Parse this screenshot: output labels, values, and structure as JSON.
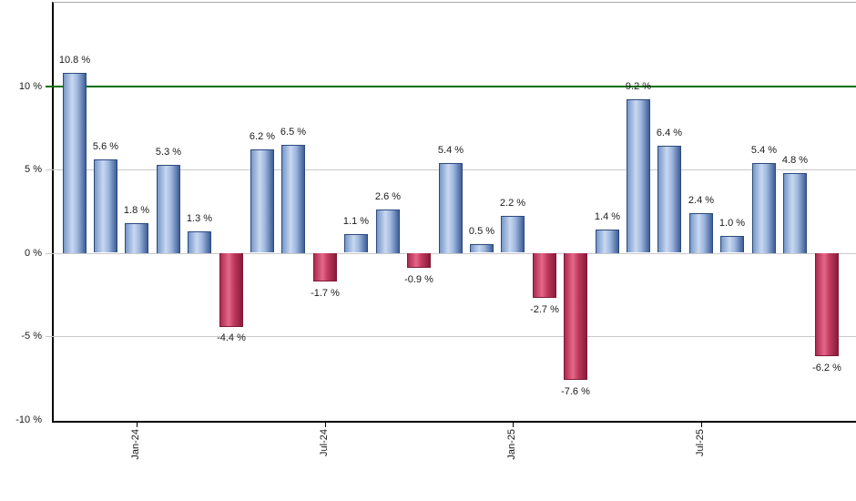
{
  "page": {
    "background": "#ffffff"
  },
  "chart_data": {
    "type": "bar",
    "title": "",
    "xlabel": "",
    "ylabel": "",
    "legend_position": "none",
    "grid": "horizontal",
    "ylim": [
      -10.3,
      14.8
    ],
    "values": [
      10.8,
      5.6,
      1.8,
      5.3,
      1.3,
      -4.4,
      6.2,
      6.5,
      -1.7,
      1.1,
      2.6,
      -0.9,
      5.4,
      0.5,
      2.2,
      -2.7,
      -7.6,
      1.4,
      9.2,
      6.4,
      2.4,
      1.0,
      5.4,
      4.8,
      -6.2
    ],
    "value_labels": [
      "10.8 %",
      "5.6 %",
      "1.8 %",
      "5.3 %",
      "1.3 %",
      "-4.4 %",
      "6.2 %",
      "6.5 %",
      "-1.7 %",
      "1.1 %",
      "2.6 %",
      "-0.9 %",
      "5.4 %",
      "0.5 %",
      "2.2 %",
      "-2.7 %",
      "-7.6 %",
      "1.4 %",
      "9.2 %",
      "6.4 %",
      "2.4 %",
      "1.0 %",
      "5.4 %",
      "4.8 %",
      "-6.2 %"
    ],
    "x_ticks": [
      {
        "bar_index": 2,
        "label": "Jan-24"
      },
      {
        "bar_index": 8,
        "label": "Jul-24"
      },
      {
        "bar_index": 14,
        "label": "Jan-25"
      },
      {
        "bar_index": 20,
        "label": "Jul-25"
      }
    ],
    "y_ticks": [
      {
        "value": 10,
        "label": "10 %"
      },
      {
        "value": 5,
        "label": "5 %"
      },
      {
        "value": 0,
        "label": "0 %"
      },
      {
        "value": -5,
        "label": "-5 %"
      },
      {
        "value": -10,
        "label": "-10 %"
      }
    ],
    "grid_values": [
      5,
      0,
      -5
    ],
    "reference_line_value": 10,
    "colors": {
      "positive_gradient": [
        "#7697c9",
        "#c9d8f0",
        "#9fb8e0",
        "#3f5e96"
      ],
      "negative_gradient": [
        "#ad2a50",
        "#e4688a",
        "#c13a60",
        "#8a1b3a"
      ],
      "positive_border": "#2c4a7e",
      "negative_border": "#7e1a36",
      "reference_line": "#007000",
      "grid": "#c9c9c9",
      "axis": "#000000",
      "label_text": "#1a1a1a"
    }
  }
}
